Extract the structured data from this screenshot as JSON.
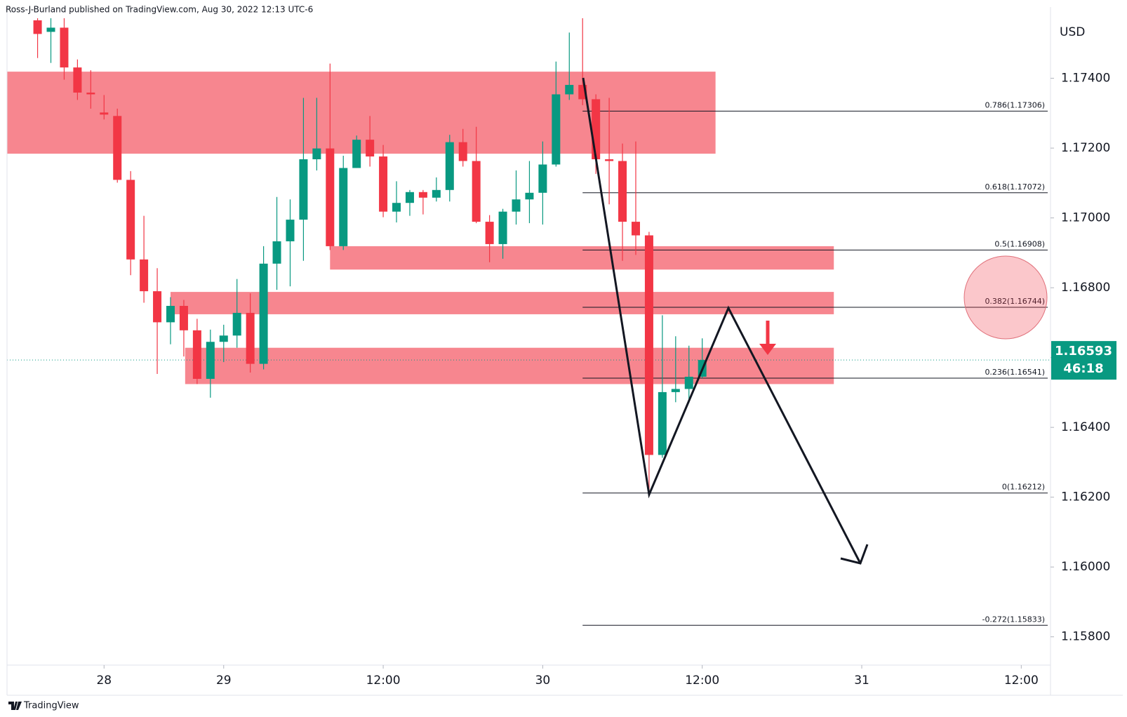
{
  "chart_data": {
    "type": "candlestick",
    "header": "Ross-J-Burland published on TradingView.com, Aug 30, 2022 12:13 UTC-6",
    "y_axis_label": "USD",
    "footer": "TradingView",
    "up_color": "#089981",
    "down_color": "#f23645",
    "zone_color": "#f23645",
    "x": [
      -14,
      -13,
      -12,
      -11,
      -10,
      -9,
      -8,
      -7,
      -6,
      -5,
      -4,
      -3,
      -2,
      -1,
      0,
      1,
      2,
      3,
      4,
      5,
      6,
      7,
      8,
      9,
      10,
      11,
      12,
      13,
      14,
      15,
      16,
      17,
      18,
      19,
      20,
      21,
      22,
      23,
      24,
      25,
      26,
      27,
      28,
      29,
      30,
      31,
      32,
      33,
      34,
      35,
      36
    ],
    "open": [
      1.17566,
      1.17533,
      1.17545,
      1.17431,
      1.17359,
      1.17302,
      1.17292,
      1.17109,
      1.16881,
      1.1679,
      1.16701,
      1.16748,
      1.16678,
      1.16539,
      1.16645,
      1.16663,
      1.16728,
      1.16582,
      1.16869,
      1.16933,
      1.16995,
      1.17168,
      1.17199,
      1.16919,
      1.17143,
      1.17224,
      1.17176,
      1.17018,
      1.17043,
      1.17074,
      1.17058,
      1.1708,
      1.17217,
      1.17163,
      1.16989,
      1.16925,
      1.17018,
      1.17053,
      1.17072,
      1.17153,
      1.17354,
      1.17381,
      1.1734,
      1.17168,
      1.17163,
      1.16989,
      1.1695,
      1.16321,
      1.16501,
      1.1651,
      1.16545
    ],
    "high": [
      1.17572,
      1.17572,
      1.17572,
      1.17454,
      1.17423,
      1.17352,
      1.17313,
      1.17134,
      1.17006,
      1.16856,
      1.16773,
      1.16765,
      1.16711,
      1.1668,
      1.16694,
      1.16825,
      1.16784,
      1.16919,
      1.1706,
      1.17053,
      1.17344,
      1.17344,
      1.17442,
      1.17178,
      1.17236,
      1.17292,
      1.17209,
      1.17105,
      1.1708,
      1.1708,
      1.17116,
      1.17238,
      1.17255,
      1.17261,
      1.17008,
      1.17026,
      1.17136,
      1.17163,
      1.17219,
      1.17448,
      1.17531,
      1.17572,
      1.17354,
      1.17344,
      1.17213,
      1.17219,
      1.1696,
      1.16721,
      1.16661,
      1.16634,
      1.16655
    ],
    "low": [
      1.17458,
      1.17444,
      1.17396,
      1.17338,
      1.17313,
      1.17282,
      1.17101,
      1.16836,
      1.16757,
      1.16553,
      1.16638,
      1.16603,
      1.16524,
      1.16485,
      1.16587,
      1.16628,
      1.16557,
      1.16566,
      1.16794,
      1.16804,
      1.16877,
      1.17136,
      1.16908,
      1.16908,
      1.17143,
      1.17147,
      1.17002,
      1.16987,
      1.17006,
      1.1701,
      1.17047,
      1.17047,
      1.17147,
      1.16985,
      1.16873,
      1.16883,
      1.16981,
      1.16985,
      1.16981,
      1.17147,
      1.17338,
      1.17323,
      1.17126,
      1.17039,
      1.16877,
      1.16894,
      1.16213,
      1.16313,
      1.16472,
      1.1647,
      1.16541
    ],
    "close": [
      1.17527,
      1.17545,
      1.17431,
      1.17359,
      1.17354,
      1.17296,
      1.17109,
      1.16881,
      1.1679,
      1.16701,
      1.16748,
      1.16678,
      1.16539,
      1.16645,
      1.16663,
      1.16728,
      1.16582,
      1.16869,
      1.16933,
      1.16995,
      1.17168,
      1.17199,
      1.16919,
      1.17143,
      1.17224,
      1.17176,
      1.17018,
      1.17043,
      1.17074,
      1.17058,
      1.1708,
      1.17217,
      1.17163,
      1.16989,
      1.16925,
      1.17018,
      1.17053,
      1.17072,
      1.17153,
      1.17354,
      1.17381,
      1.1734,
      1.17168,
      1.17163,
      1.16989,
      1.1695,
      1.16321,
      1.16501,
      1.1651,
      1.16545,
      1.16593
    ],
    "xlim": [
      -16.3,
      62.2
    ],
    "ylim": [
      1.15719,
      1.17572
    ],
    "xticks": [
      {
        "value": -9,
        "label": "28"
      },
      {
        "value": 0,
        "label": "29"
      },
      {
        "value": 12,
        "label": "12:00"
      },
      {
        "value": 24,
        "label": "30"
      },
      {
        "value": 36,
        "label": "12:00"
      },
      {
        "value": 48,
        "label": "31"
      },
      {
        "value": 60,
        "label": "12:00"
      }
    ],
    "yticks": [
      {
        "value": 1.158,
        "label": "1.15800"
      },
      {
        "value": 1.16,
        "label": "1.16000"
      },
      {
        "value": 1.162,
        "label": "1.16200"
      },
      {
        "value": 1.164,
        "label": "1.16400"
      },
      {
        "value": 1.166,
        "label": "1.16600"
      },
      {
        "value": 1.168,
        "label": "1.16800"
      },
      {
        "value": 1.17,
        "label": "1.17000"
      },
      {
        "value": 1.172,
        "label": "1.17200"
      },
      {
        "value": 1.174,
        "label": "1.17400"
      }
    ],
    "zones": [
      {
        "x": [
          -16.3,
          37
        ],
        "y": [
          1.17184,
          1.17419
        ]
      },
      {
        "x": [
          8,
          45.9
        ],
        "y": [
          1.16852,
          1.16919
        ]
      },
      {
        "x": [
          -4,
          45.9
        ],
        "y": [
          1.16724,
          1.16788
        ]
      },
      {
        "x": [
          -2.9,
          45.9
        ],
        "y": [
          1.16524,
          1.16628
        ]
      }
    ],
    "fib_start": 27,
    "fib_levels": [
      {
        "value": 1.17306,
        "label": "0.786(1.17306)"
      },
      {
        "value": 1.17072,
        "label": "0.618(1.17072)"
      },
      {
        "value": 1.16908,
        "label": "0.5(1.16908)"
      },
      {
        "value": 1.16744,
        "label": "0.382(1.16744)"
      },
      {
        "value": 1.16541,
        "label": "0.236(1.16541)"
      },
      {
        "value": 1.16212,
        "label": "0(1.16212)"
      },
      {
        "value": 1.15833,
        "label": "-0.272(1.15833)"
      }
    ],
    "last_price": 1.16593,
    "countdown": "46:18"
  }
}
